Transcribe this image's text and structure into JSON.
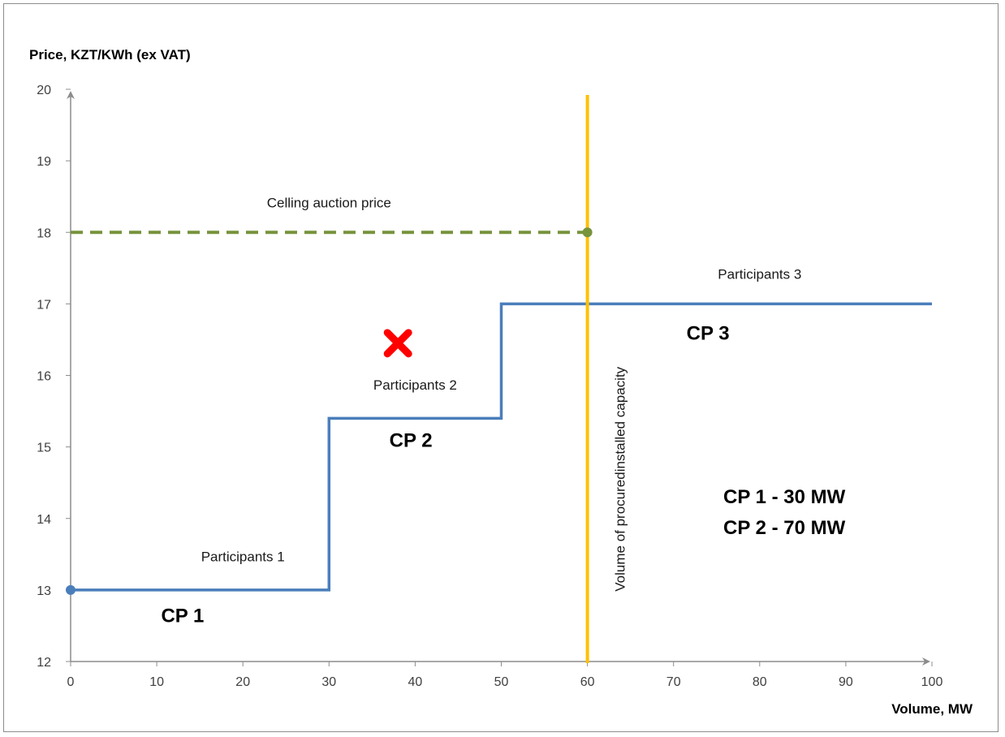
{
  "chart_data": {
    "type": "line",
    "ylabel": "Price, KZT/KWh (ex VAT)",
    "xlabel": "Volume, MW",
    "xlim": [
      0,
      100
    ],
    "ylim": [
      12,
      20
    ],
    "x_ticks": [
      0,
      10,
      20,
      30,
      40,
      50,
      60,
      70,
      80,
      90,
      100
    ],
    "y_ticks": [
      12,
      13,
      14,
      15,
      16,
      17,
      18,
      19,
      20
    ],
    "series": [
      {
        "kind": "step",
        "color": "#4a7ebb",
        "points": [
          [
            0,
            13
          ],
          [
            30,
            13
          ],
          [
            30,
            15.4
          ],
          [
            50,
            15.4
          ],
          [
            50,
            17
          ],
          [
            100,
            17
          ]
        ]
      },
      {
        "kind": "dashed",
        "color": "#77933c",
        "points": [
          [
            0,
            18
          ],
          [
            60,
            18
          ]
        ]
      }
    ],
    "vertical_line": {
      "x": 60,
      "color": "#ffc000",
      "label": "Volume of procuredinstalled capacity"
    },
    "annotations": [
      {
        "text": "Celling auction price",
        "x": 30,
        "y": 18.35,
        "style": "annot"
      },
      {
        "text": "Participants 1",
        "x": 20,
        "y": 13.4,
        "style": "annot"
      },
      {
        "text": "Participants 2",
        "x": 40,
        "y": 15.8,
        "style": "annot"
      },
      {
        "text": "Participants 3",
        "x": 80,
        "y": 17.35,
        "style": "annot"
      },
      {
        "text": "CP 1",
        "x": 13,
        "y": 12.55,
        "style": "cp"
      },
      {
        "text": "CP 2",
        "x": 39.5,
        "y": 15.0,
        "style": "cp"
      },
      {
        "text": "CP 3",
        "x": 74,
        "y": 16.5,
        "style": "cp"
      }
    ],
    "summary": [
      "CP 1 - 30 MW",
      "CP 2 - 70 MW"
    ],
    "markers": [
      {
        "type": "cross",
        "x": 38,
        "y": 16.45,
        "color": "#ff0000"
      },
      {
        "type": "dot",
        "x": 0,
        "y": 13,
        "color": "#4a7ebb"
      },
      {
        "type": "dot",
        "x": 60,
        "y": 18,
        "color": "#77933c"
      }
    ]
  }
}
